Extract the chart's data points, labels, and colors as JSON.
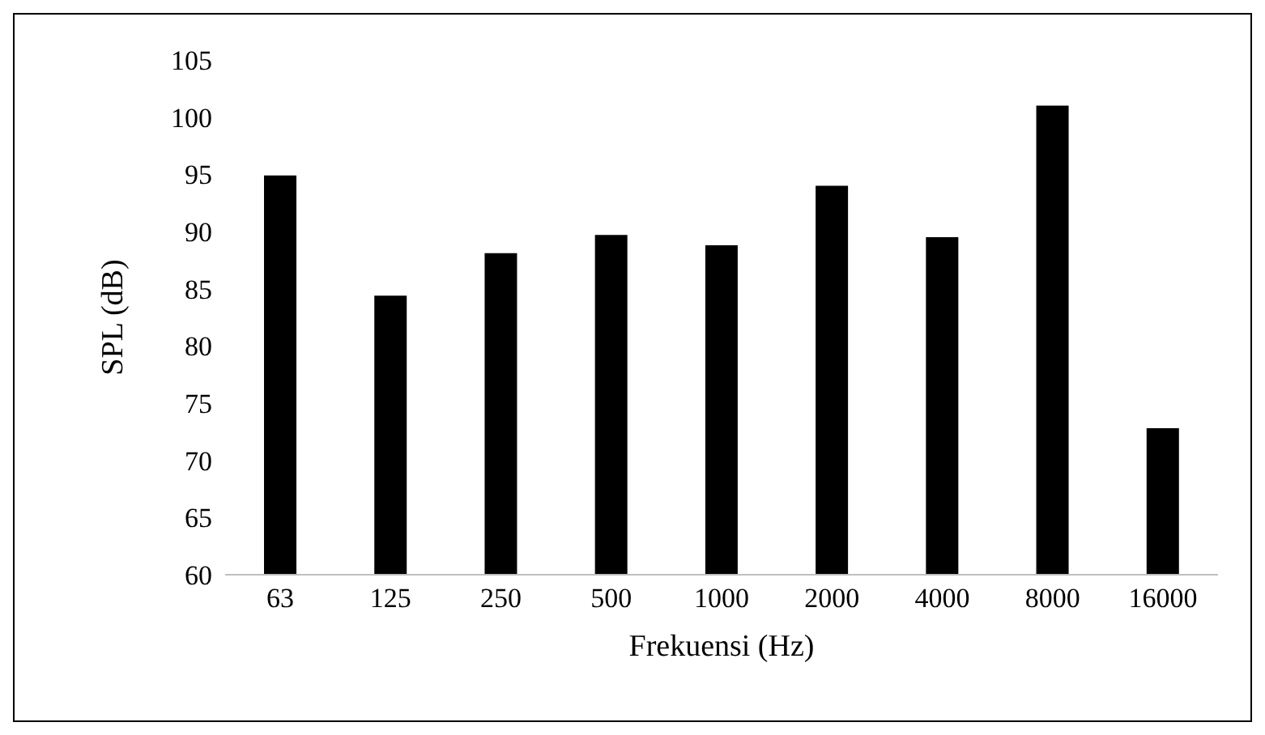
{
  "chart_data": {
    "type": "bar",
    "xlabel": "Frekuensi (Hz)",
    "ylabel": "SPL (dB)",
    "categories": [
      "63",
      "125",
      "250",
      "500",
      "1000",
      "2000",
      "4000",
      "8000",
      "16000"
    ],
    "values": [
      94.9,
      84.4,
      88.1,
      89.7,
      88.8,
      94.0,
      89.5,
      101.0,
      72.8
    ],
    "color": "#000000",
    "ylim": [
      60,
      105
    ],
    "yticks": [
      60,
      65,
      70,
      75,
      80,
      85,
      90,
      95,
      100,
      105
    ],
    "grid": false
  }
}
